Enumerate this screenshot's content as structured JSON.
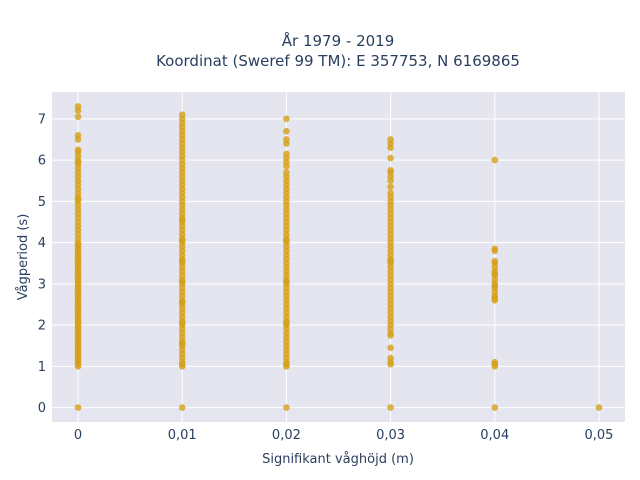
{
  "chart_data": {
    "type": "scatter",
    "title": "År 1979 - 2019",
    "subtitle": "Koordinat (Sweref 99 TM): E 357753, N 6169865",
    "xlabel": "Signifikant våghöjd (m)",
    "ylabel": "Vågperiod (s)",
    "xlim": [
      -0.0025,
      0.0525
    ],
    "ylim": [
      -0.35,
      7.65
    ],
    "x_ticks": [
      {
        "value": 0,
        "label": "0"
      },
      {
        "value": 0.01,
        "label": "0,01"
      },
      {
        "value": 0.02,
        "label": "0,02"
      },
      {
        "value": 0.03,
        "label": "0,03"
      },
      {
        "value": 0.04,
        "label": "0,04"
      },
      {
        "value": 0.05,
        "label": "0,05"
      }
    ],
    "y_ticks": [
      {
        "value": 0,
        "label": "0"
      },
      {
        "value": 1,
        "label": "1"
      },
      {
        "value": 2,
        "label": "2"
      },
      {
        "value": 3,
        "label": "3"
      },
      {
        "value": 4,
        "label": "4"
      },
      {
        "value": 5,
        "label": "5"
      },
      {
        "value": 6,
        "label": "6"
      },
      {
        "value": 7,
        "label": "7"
      }
    ],
    "grid": true,
    "marker_color": "#d4a017",
    "plot_background": "#e5e5ef",
    "series": [
      {
        "x": [
          0,
          0,
          0,
          0,
          0,
          0,
          0,
          0,
          0,
          0,
          0,
          0,
          0,
          0,
          0,
          0,
          0,
          0,
          0,
          0,
          0,
          0,
          0,
          0,
          0,
          0,
          0,
          0,
          0,
          0,
          0,
          0,
          0,
          0,
          0,
          0,
          0,
          0,
          0,
          0,
          0,
          0,
          0,
          0,
          0,
          0,
          0,
          0,
          0,
          0,
          0,
          0,
          0,
          0,
          0,
          0,
          0,
          0,
          0,
          0,
          0,
          0,
          0,
          0,
          0,
          0,
          0,
          0,
          0,
          0,
          0,
          0,
          0,
          0,
          0,
          0,
          0,
          0,
          0,
          0,
          0,
          0,
          0,
          0,
          0,
          0,
          0,
          0,
          0,
          0,
          0,
          0,
          0.01,
          0.01,
          0.01,
          0.01,
          0.01,
          0.01,
          0.01,
          0.01,
          0.01,
          0.01,
          0.01,
          0.01,
          0.01,
          0.01,
          0.01,
          0.01,
          0.01,
          0.01,
          0.01,
          0.01,
          0.01,
          0.01,
          0.01,
          0.01,
          0.01,
          0.01,
          0.01,
          0.01,
          0.01,
          0.01,
          0.01,
          0.01,
          0.01,
          0.01,
          0.01,
          0.01,
          0.01,
          0.01,
          0.01,
          0.01,
          0.01,
          0.01,
          0.01,
          0.01,
          0.01,
          0.01,
          0.01,
          0.01,
          0.01,
          0.01,
          0.01,
          0.01,
          0.01,
          0.01,
          0.01,
          0.01,
          0.01,
          0.01,
          0.01,
          0.01,
          0.01,
          0.01,
          0.01,
          0.01,
          0.01,
          0.01,
          0.01,
          0.01,
          0.01,
          0.01,
          0.01,
          0.02,
          0.02,
          0.02,
          0.02,
          0.02,
          0.02,
          0.02,
          0.02,
          0.02,
          0.02,
          0.02,
          0.02,
          0.02,
          0.02,
          0.02,
          0.02,
          0.02,
          0.02,
          0.02,
          0.02,
          0.02,
          0.02,
          0.02,
          0.02,
          0.02,
          0.02,
          0.02,
          0.02,
          0.02,
          0.02,
          0.02,
          0.02,
          0.02,
          0.02,
          0.02,
          0.02,
          0.02,
          0.02,
          0.02,
          0.02,
          0.02,
          0.02,
          0.02,
          0.02,
          0.02,
          0.02,
          0.02,
          0.02,
          0.02,
          0.02,
          0.02,
          0.02,
          0.02,
          0.02,
          0.02,
          0.02,
          0.02,
          0.02,
          0.02,
          0.02,
          0.02,
          0.03,
          0.03,
          0.03,
          0.03,
          0.03,
          0.03,
          0.03,
          0.03,
          0.03,
          0.03,
          0.03,
          0.03,
          0.03,
          0.03,
          0.03,
          0.03,
          0.03,
          0.03,
          0.03,
          0.03,
          0.03,
          0.03,
          0.03,
          0.03,
          0.03,
          0.03,
          0.03,
          0.03,
          0.03,
          0.03,
          0.03,
          0.03,
          0.03,
          0.03,
          0.03,
          0.03,
          0.03,
          0.03,
          0.03,
          0.03,
          0.03,
          0.03,
          0.03,
          0.03,
          0.03,
          0.03,
          0.03,
          0.03,
          0.03,
          0.03,
          0.03,
          0.04,
          0.04,
          0.04,
          0.04,
          0.04,
          0.04,
          0.04,
          0.04,
          0.04,
          0.04,
          0.04,
          0.04,
          0.04,
          0.04,
          0.04,
          0.04,
          0.04,
          0.04,
          0.04,
          0.04,
          0.04,
          0.05
        ],
        "y": [
          0,
          1.0,
          1.1,
          1.2,
          1.3,
          1.4,
          1.5,
          1.6,
          1.7,
          1.8,
          1.9,
          2.0,
          2.1,
          2.2,
          2.3,
          2.4,
          2.5,
          2.6,
          2.7,
          2.8,
          2.9,
          3.0,
          3.1,
          3.2,
          3.3,
          3.4,
          3.5,
          3.6,
          3.7,
          3.8,
          3.9,
          4.0,
          4.1,
          4.2,
          4.3,
          4.4,
          4.5,
          4.6,
          4.7,
          4.8,
          4.9,
          5.0,
          5.1,
          5.2,
          5.3,
          5.4,
          5.5,
          5.6,
          5.7,
          5.8,
          5.9,
          6.0,
          6.1,
          6.2,
          6.25,
          6.5,
          6.6,
          7.05,
          7.2,
          7.3,
          1.05,
          1.15,
          1.25,
          1.35,
          1.45,
          1.55,
          1.65,
          1.75,
          1.85,
          1.95,
          2.05,
          2.15,
          2.25,
          2.35,
          2.45,
          2.55,
          2.65,
          2.75,
          2.85,
          2.95,
          3.05,
          3.15,
          3.25,
          3.35,
          3.45,
          3.55,
          3.65,
          3.75,
          3.85,
          3.95,
          5.05,
          5.95,
          0,
          1.0,
          1.1,
          1.2,
          1.3,
          1.4,
          1.5,
          1.6,
          1.7,
          1.8,
          1.9,
          2.0,
          2.1,
          2.2,
          2.3,
          2.4,
          2.5,
          2.6,
          2.7,
          2.8,
          2.9,
          3.0,
          3.1,
          3.2,
          3.3,
          3.4,
          3.5,
          3.6,
          3.7,
          3.8,
          3.9,
          4.0,
          4.1,
          4.2,
          4.3,
          4.4,
          4.5,
          4.6,
          4.7,
          4.8,
          4.9,
          5.0,
          5.1,
          5.2,
          5.3,
          5.4,
          5.5,
          5.6,
          5.7,
          5.8,
          5.9,
          6.0,
          6.1,
          6.2,
          6.3,
          6.4,
          6.5,
          6.6,
          6.7,
          6.8,
          6.9,
          7.0,
          7.1,
          1.05,
          1.55,
          2.05,
          2.55,
          3.05,
          3.55,
          4.05,
          4.55,
          0,
          1.0,
          1.1,
          1.2,
          1.3,
          1.4,
          1.5,
          1.6,
          1.7,
          1.8,
          1.9,
          2.0,
          2.1,
          2.2,
          2.3,
          2.4,
          2.5,
          2.6,
          2.7,
          2.8,
          2.9,
          3.0,
          3.1,
          3.2,
          3.3,
          3.4,
          3.5,
          3.6,
          3.7,
          3.8,
          3.9,
          4.0,
          4.1,
          4.2,
          4.3,
          4.4,
          4.5,
          4.6,
          4.7,
          4.8,
          4.9,
          5.0,
          5.1,
          5.2,
          5.3,
          5.4,
          5.5,
          5.6,
          5.7,
          5.85,
          5.95,
          6.05,
          6.15,
          6.4,
          6.5,
          6.7,
          7.0,
          1.05,
          2.05,
          3.05,
          4.05,
          0,
          1.05,
          1.1,
          1.2,
          1.45,
          1.75,
          1.8,
          1.9,
          2.0,
          2.1,
          2.2,
          2.3,
          2.4,
          2.5,
          2.6,
          2.7,
          2.8,
          2.9,
          3.0,
          3.1,
          3.2,
          3.3,
          3.4,
          3.5,
          3.6,
          3.7,
          3.8,
          3.9,
          4.0,
          4.1,
          4.2,
          4.3,
          4.4,
          4.5,
          4.6,
          4.7,
          4.8,
          4.9,
          5.0,
          5.1,
          5.2,
          5.35,
          5.5,
          5.6,
          5.7,
          5.75,
          6.05,
          6.3,
          6.4,
          6.5,
          3.55,
          0,
          1.0,
          1.05,
          1.1,
          2.6,
          2.7,
          2.8,
          2.9,
          3.0,
          3.1,
          3.2,
          3.3,
          3.4,
          3.5,
          3.55,
          3.8,
          3.85,
          6.0,
          2.65,
          2.95,
          3.25,
          0
        ]
      }
    ]
  }
}
